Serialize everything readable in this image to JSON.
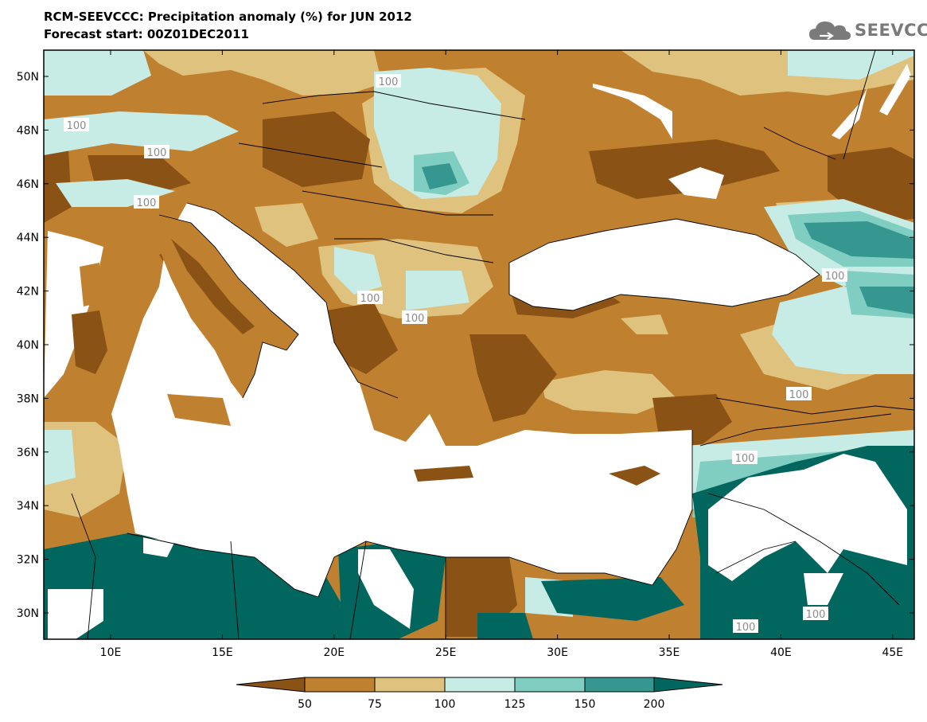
{
  "header": {
    "title": "RCM-SEEVCCC: Precipitation anomaly (%) for JUN 2012",
    "subtitle": "Forecast start: 00Z01DEC2011"
  },
  "logo": {
    "text": "SEEVCCC",
    "icon": "cloud-icon"
  },
  "map": {
    "lat_ticks": [
      "50N",
      "48N",
      "46N",
      "44N",
      "42N",
      "40N",
      "38N",
      "36N",
      "34N",
      "32N",
      "30N"
    ],
    "lon_ticks": [
      "10E",
      "15E",
      "20E",
      "25E",
      "30E",
      "35E",
      "40E",
      "45E"
    ],
    "contour_labels": [
      "100",
      "100",
      "100",
      "100",
      "100",
      "100",
      "100",
      "100",
      "100",
      "100",
      "100"
    ],
    "colors": {
      "below_50": "#8a5214",
      "c50_75": "#bf8130",
      "c75_100": "#dfc27e",
      "c100_125": "#c7ebe5",
      "c125_150": "#80cdc1",
      "c150_200": "#35978f",
      "above_200": "#01665e",
      "sea": "#ffffff"
    }
  },
  "colorbar": {
    "labels": [
      "50",
      "75",
      "100",
      "125",
      "150",
      "200"
    ],
    "colors": [
      "#8a5214",
      "#bf8130",
      "#dfc27e",
      "#c7ebe5",
      "#80cdc1",
      "#35978f",
      "#01665e"
    ]
  }
}
